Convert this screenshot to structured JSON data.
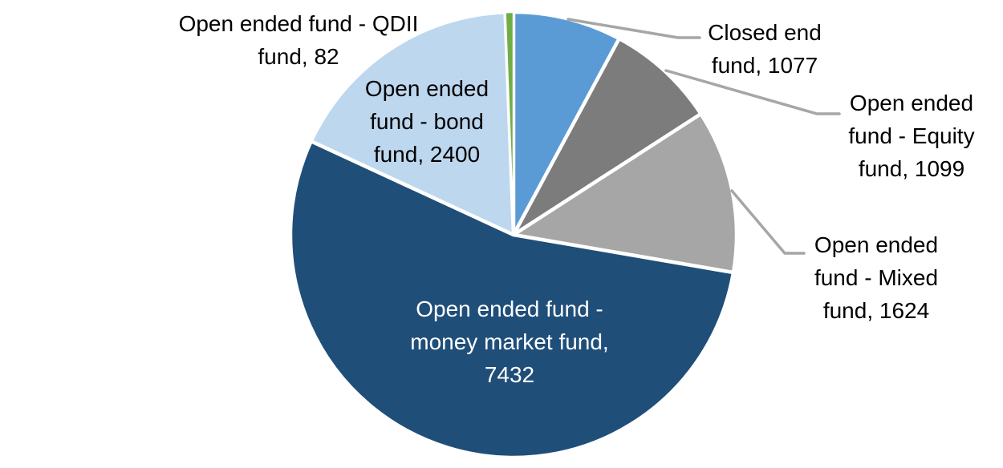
{
  "chart_data": {
    "type": "pie",
    "title": "",
    "legend": "none",
    "start_angle_deg": 0,
    "direction": "clockwise",
    "background_color": "#FFFFFF",
    "leader_line_color": "#A6A6A6",
    "slices": [
      {
        "name": "Closed end fund",
        "value": 1077,
        "color": "#5B9BD5",
        "label_text": "Closed end fund, 1077",
        "label_lines": [
          "Closed end",
          "fund, 1077"
        ],
        "label_text_color": "#000000",
        "label_placement": "outside"
      },
      {
        "name": "Open ended fund - Equity fund",
        "value": 1099,
        "color": "#7C7C7C",
        "label_text": "Open ended fund - Equity fund, 1099",
        "label_lines": [
          "Open ended",
          "fund - Equity",
          "fund, 1099"
        ],
        "label_text_color": "#000000",
        "label_placement": "outside"
      },
      {
        "name": "Open ended fund - Mixed fund",
        "value": 1624,
        "color": "#A6A6A6",
        "label_text": "Open ended fund - Mixed fund, 1624",
        "label_lines": [
          "Open ended",
          "fund - Mixed",
          "fund, 1624"
        ],
        "label_text_color": "#000000",
        "label_placement": "outside"
      },
      {
        "name": "Open ended fund - money market fund",
        "value": 7432,
        "color": "#1F4E79",
        "label_text": "Open ended fund - money market fund, 7432",
        "label_lines": [
          "Open ended fund -",
          "money market fund,",
          "7432"
        ],
        "label_text_color": "#FFFFFF",
        "label_placement": "inside"
      },
      {
        "name": "Open ended fund - bond fund",
        "value": 2400,
        "color": "#BDD7EE",
        "label_text": "Open ended fund - bond fund, 2400",
        "label_lines": [
          "Open ended",
          "fund - bond",
          "fund, 2400"
        ],
        "label_text_color": "#000000",
        "label_placement": "inside"
      },
      {
        "name": "Open ended fund - QDII fund",
        "value": 82,
        "color": "#70AD47",
        "label_text": "Open ended fund - QDII fund, 82",
        "label_lines": [
          "Open ended fund - QDII",
          "fund, 82"
        ],
        "label_text_color": "#000000",
        "label_placement": "outside"
      }
    ]
  }
}
